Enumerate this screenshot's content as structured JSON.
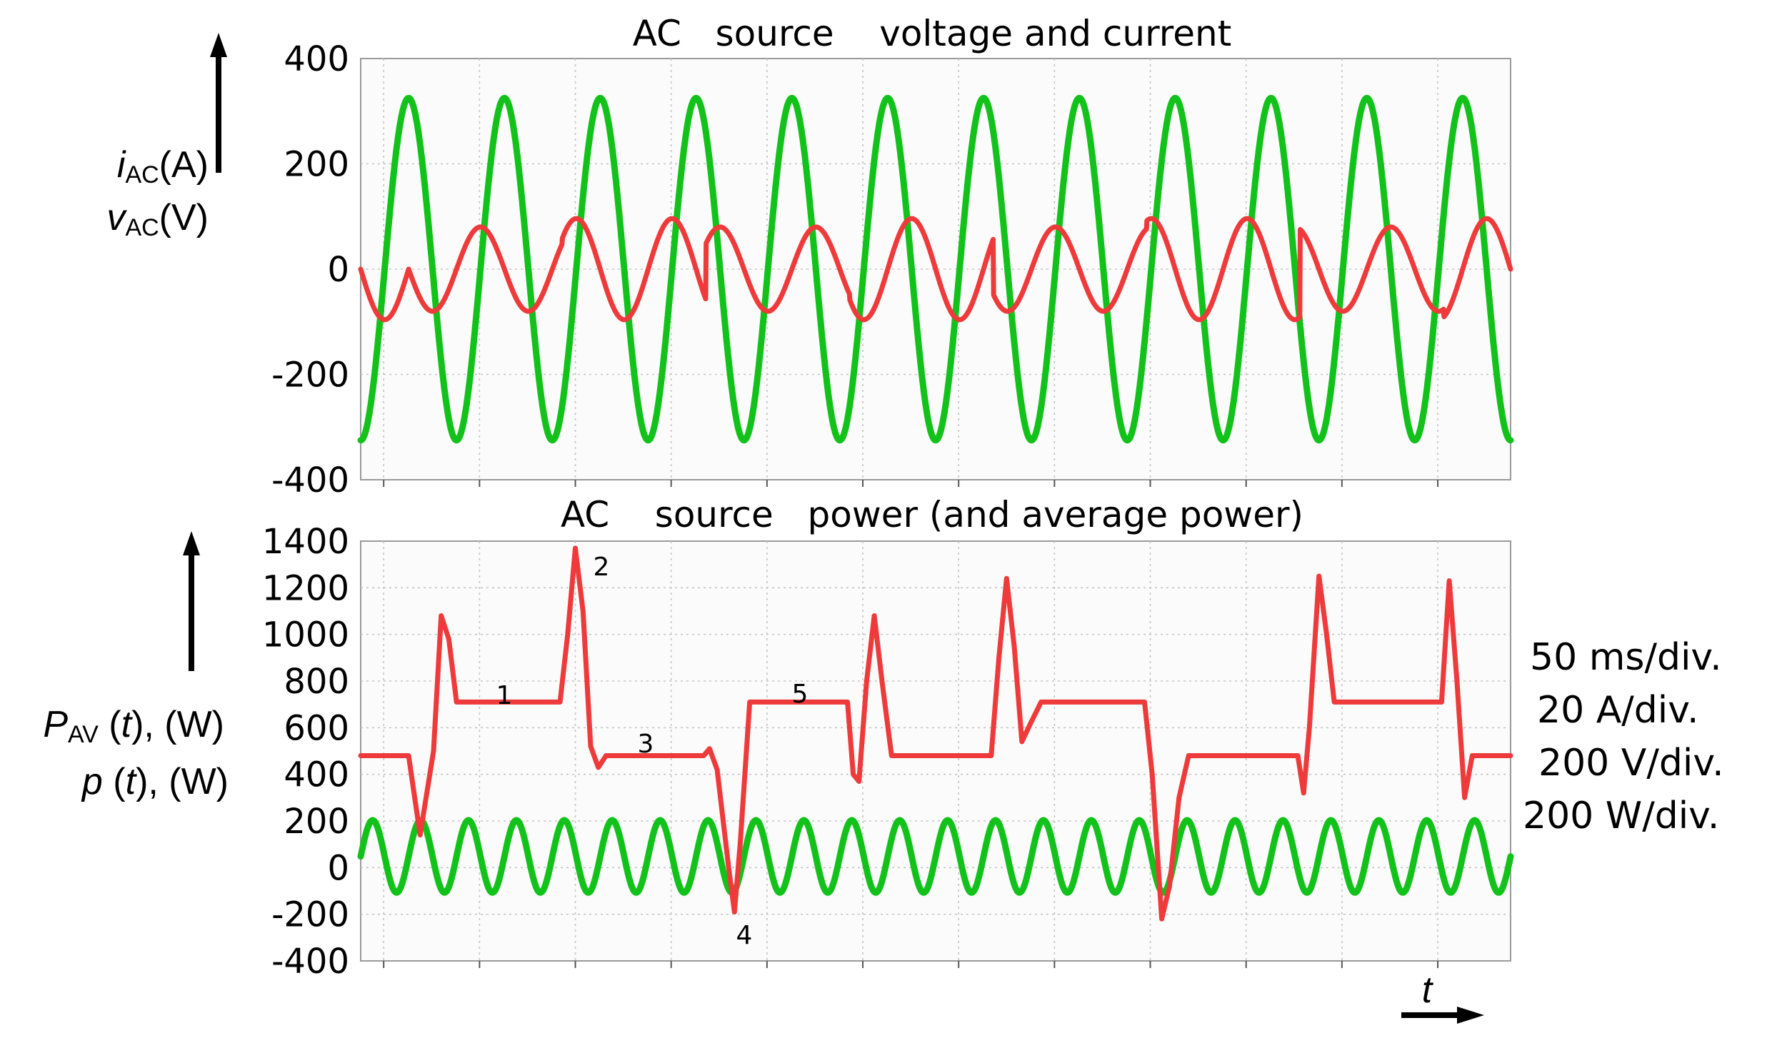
{
  "chart_data": [
    {
      "type": "line",
      "title": "AC   source    voltage and current",
      "ylabel_line1": "i_AC(A)",
      "ylabel_line2": "v_AC(V)",
      "ylim": [
        -400,
        400
      ],
      "yticks": [
        400,
        200,
        0,
        -200,
        -400
      ],
      "ytick_labels": [
        "400",
        "200",
        "0",
        "-200",
        "-400"
      ],
      "xlim": [
        0,
        600
      ],
      "x_unit": "ms",
      "grid": true,
      "series": [
        {
          "color": "#12c21a",
          "kind": "sine",
          "amplitude": 325,
          "frequency_hz": 20,
          "phase_deg": -90
        },
        {
          "color": "#ee3a3a",
          "kind": "piecewise_sine",
          "frequency_hz": 20,
          "segments": [
            {
              "t_start": 0,
              "t_end": 25,
              "amplitude": 96,
              "phase_deg": 180
            },
            {
              "t_start": 25,
              "t_end": 105,
              "amplitude": 80,
              "phase_deg": 0
            },
            {
              "t_start": 105,
              "t_end": 180,
              "amplitude": 96,
              "phase_deg": 0
            },
            {
              "t_start": 180,
              "t_end": 255,
              "amplitude": 80,
              "phase_deg": 180
            },
            {
              "t_start": 255,
              "t_end": 330,
              "amplitude": 96,
              "phase_deg": 180
            },
            {
              "t_start": 330,
              "t_end": 410,
              "amplitude": 80,
              "phase_deg": 0
            },
            {
              "t_start": 410,
              "t_end": 490,
              "amplitude": 96,
              "phase_deg": 0
            },
            {
              "t_start": 490,
              "t_end": 565,
              "amplitude": 80,
              "phase_deg": 180
            },
            {
              "t_start": 565,
              "t_end": 600,
              "amplitude": 96,
              "phase_deg": 180
            }
          ]
        }
      ]
    },
    {
      "type": "line",
      "title": "AC    source   power (and average power)",
      "ylabel_line1": "P_AV (t), (W)",
      "ylabel_line2": "p (t), (W)",
      "ylim": [
        -400,
        1400
      ],
      "yticks": [
        1400,
        1200,
        1000,
        800,
        600,
        400,
        200,
        0,
        -200,
        -400
      ],
      "ytick_labels": [
        "1400",
        "1200",
        "1000",
        "800",
        "600",
        "400",
        "200",
        "0",
        "-200",
        "-400"
      ],
      "xlim": [
        0,
        600
      ],
      "x_unit": "ms",
      "xlabel": "t",
      "grid": true,
      "series": [
        {
          "color": "#ee3a3a",
          "kind": "average_power",
          "points": [
            [
              0,
              480
            ],
            [
              25,
              480
            ],
            [
              31,
              140
            ],
            [
              38,
              500
            ],
            [
              42,
              1080
            ],
            [
              46,
              980
            ],
            [
              50,
              710
            ],
            [
              104,
              710
            ],
            [
              108,
              1000
            ],
            [
              112,
              1370
            ],
            [
              116,
              1100
            ],
            [
              120,
              520
            ],
            [
              124,
              430
            ],
            [
              128,
              480
            ],
            [
              179,
              480
            ],
            [
              182,
              510
            ],
            [
              186,
              420
            ],
            [
              192,
              0
            ],
            [
              195,
              -190
            ],
            [
              198,
              100
            ],
            [
              203,
              710
            ],
            [
              254,
              710
            ],
            [
              257,
              400
            ],
            [
              260,
              370
            ],
            [
              264,
              800
            ],
            [
              268,
              1080
            ],
            [
              272,
              800
            ],
            [
              277,
              480
            ],
            [
              329,
              480
            ],
            [
              333,
              900
            ],
            [
              337,
              1240
            ],
            [
              341,
              950
            ],
            [
              345,
              540
            ],
            [
              349,
              610
            ],
            [
              355,
              710
            ],
            [
              409,
              710
            ],
            [
              413,
              400
            ],
            [
              418,
              -220
            ],
            [
              422,
              -80
            ],
            [
              427,
              300
            ],
            [
              432,
              480
            ],
            [
              489,
              480
            ],
            [
              492,
              320
            ],
            [
              495,
              600
            ],
            [
              500,
              1250
            ],
            [
              504,
              1000
            ],
            [
              508,
              710
            ],
            [
              564,
              710
            ],
            [
              568,
              1230
            ],
            [
              572,
              800
            ],
            [
              576,
              300
            ],
            [
              580,
              480
            ],
            [
              600,
              480
            ]
          ]
        },
        {
          "color": "#12c21a",
          "kind": "instantaneous_power",
          "mean_w": 48,
          "amplitude_w": 155,
          "frequency_hz": 40
        }
      ],
      "annotations": [
        "1",
        "2",
        "3",
        "4",
        "5"
      ]
    }
  ],
  "scale_info": [
    "50 ms/div.",
    "20 A/div.",
    "200 V/div.",
    "200 W/div."
  ]
}
